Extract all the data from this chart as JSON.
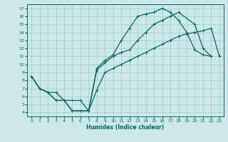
{
  "xlabel": "Humidex (Indice chaleur)",
  "bg_color": "#cce8e8",
  "grid_color": "#99cccc",
  "line_color": "#006666",
  "xlim": [
    -0.5,
    23.5
  ],
  "ylim": [
    3.5,
    17.5
  ],
  "xticks": [
    0,
    1,
    2,
    3,
    4,
    5,
    6,
    7,
    8,
    9,
    10,
    11,
    12,
    13,
    14,
    15,
    16,
    17,
    18,
    19,
    20,
    21,
    22,
    23
  ],
  "yticks": [
    4,
    5,
    6,
    7,
    8,
    9,
    10,
    11,
    12,
    13,
    14,
    15,
    16,
    17
  ],
  "curve1_x": [
    0,
    1,
    2,
    3,
    4,
    5,
    6,
    7,
    8,
    9,
    10,
    11,
    12,
    13,
    14,
    15,
    16,
    17,
    18,
    19,
    20,
    21,
    22
  ],
  "curve1_y": [
    8.5,
    7.0,
    6.5,
    5.5,
    5.5,
    4.2,
    4.2,
    4.2,
    9.5,
    10.5,
    11.2,
    13.0,
    14.5,
    16.0,
    16.3,
    16.5,
    17.0,
    16.5,
    15.5,
    14.0,
    11.8,
    11.2,
    11.0
  ],
  "curve2_x": [
    0,
    1,
    2,
    3,
    4,
    5,
    6,
    7,
    8,
    9,
    10,
    11,
    12,
    13,
    14,
    15,
    16,
    17,
    18,
    20,
    21,
    22
  ],
  "curve2_y": [
    8.5,
    7.0,
    6.5,
    5.5,
    5.5,
    4.2,
    4.2,
    4.2,
    9.3,
    10.2,
    11.0,
    11.5,
    11.8,
    13.0,
    14.0,
    15.0,
    15.5,
    16.0,
    16.5,
    15.0,
    12.0,
    11.0
  ],
  "curve3_x": [
    0,
    1,
    2,
    3,
    4,
    5,
    6,
    7,
    8,
    9,
    10,
    11,
    12,
    13,
    14,
    15,
    16,
    17,
    18,
    19,
    20,
    21,
    22,
    23
  ],
  "curve3_y": [
    8.5,
    7.0,
    6.5,
    6.5,
    5.5,
    5.5,
    5.5,
    4.2,
    6.8,
    9.0,
    9.5,
    10.0,
    10.5,
    11.0,
    11.5,
    12.0,
    12.5,
    13.0,
    13.5,
    13.8,
    14.0,
    14.2,
    14.5,
    11.0
  ]
}
